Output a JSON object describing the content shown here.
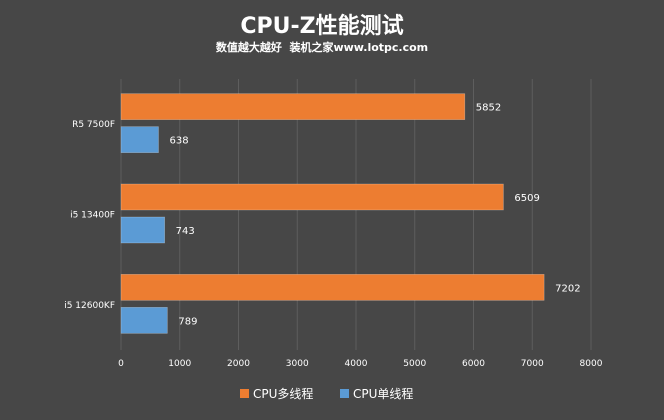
{
  "chart_data": {
    "type": "bar",
    "orientation": "horizontal",
    "title": "CPU-Z性能测试",
    "subtitle": "数值越大越好  装机之家www.lotpc.com",
    "categories": [
      "R5 7500F",
      "i5 13400F",
      "i5 12600KF"
    ],
    "series": [
      {
        "name": "CPU多线程",
        "color": "#ED7D31",
        "values": [
          5852,
          6509,
          7202
        ]
      },
      {
        "name": "CPU单线程",
        "color": "#5B9BD5",
        "values": [
          638,
          743,
          789
        ]
      }
    ],
    "xlim": [
      0,
      8000
    ],
    "xticks": [
      "0",
      "1000",
      "2000",
      "3000",
      "4000",
      "5000",
      "6000",
      "7000",
      "8000"
    ],
    "grid": true,
    "legend": "bottom"
  }
}
